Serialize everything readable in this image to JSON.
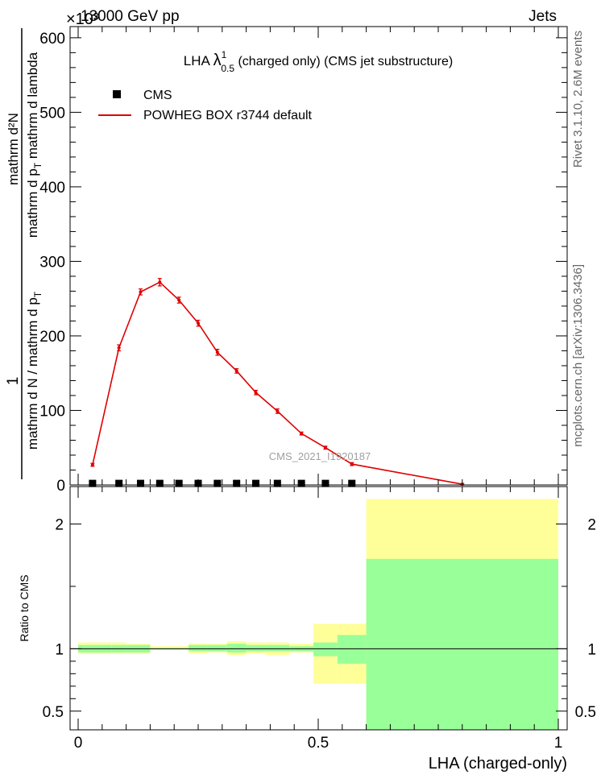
{
  "header": {
    "left": "13000 GeV pp",
    "right": "Jets",
    "exponent": "×10³"
  },
  "side_text": {
    "rivet": "Rivet 3.1.10,  2.6M events",
    "mcplots": "mcplots.cern.ch [arXiv:1306.3436]"
  },
  "watermark": "CMS_2021_I1920187",
  "main_plot": {
    "title_prefix": "LHA ",
    "title_symbol": "λ",
    "title_sup": "1",
    "title_sub": "0.5",
    "title_suffix": " (charged only) (CMS jet substructure)",
    "ylabel_numerator": "1",
    "ylabel_denominator": "mathrm d N / mathrm d p",
    "ylabel_denominator_sub": "T",
    "ylabel_numerator_full": "mathrm d²N",
    "ylabel_numerator_tail": "mathrm d p",
    "ylabel_numerator_tail_sub": "T",
    "ylabel_numerator_end": " mathrm d lambda",
    "legend": [
      {
        "label": "CMS",
        "marker": "square",
        "color": "#000000"
      },
      {
        "label": "POWHEG BOX r3744 default",
        "marker": "line",
        "color": "#e00000"
      }
    ]
  },
  "ratio_plot": {
    "ylabel": "Ratio to CMS",
    "xlabel": "LHA (charged-only)"
  },
  "colors": {
    "mc_line": "#e00000",
    "data_marker": "#000000",
    "band_outer": "#ffff99",
    "band_inner": "#99ff99"
  },
  "chart_data": [
    {
      "type": "line",
      "panel": "main",
      "xlim": [
        0,
        1
      ],
      "ylim": [
        0,
        615
      ],
      "y_multiplier": 1000,
      "yticks": [
        0,
        100,
        200,
        300,
        400,
        500,
        600
      ],
      "ytick_labels": [
        "0",
        "100",
        "200",
        "300",
        "400",
        "500",
        "600"
      ],
      "bins": [
        0.0,
        0.07,
        0.1,
        0.15,
        0.19,
        0.23,
        0.27,
        0.31,
        0.35,
        0.39,
        0.44,
        0.49,
        0.54,
        0.6,
        1.0
      ],
      "series": [
        {
          "name": "CMS",
          "kind": "markers",
          "x": [
            0.03,
            0.085,
            0.13,
            0.17,
            0.21,
            0.25,
            0.29,
            0.33,
            0.37,
            0.415,
            0.465,
            0.515,
            0.57
          ],
          "y": [
            1.5,
            1.5,
            1.5,
            1.5,
            1.5,
            1.5,
            1.5,
            1.5,
            1.5,
            1.5,
            1.5,
            1.5,
            1.5
          ]
        },
        {
          "name": "POWHEG BOX r3744 default",
          "kind": "line",
          "x": [
            0.03,
            0.085,
            0.13,
            0.17,
            0.21,
            0.25,
            0.29,
            0.33,
            0.37,
            0.415,
            0.465,
            0.515,
            0.57,
            0.8
          ],
          "y": [
            27,
            184,
            259,
            272,
            248,
            217,
            178,
            153,
            124,
            99,
            69,
            50,
            28,
            1
          ],
          "yerr": [
            2,
            4,
            4,
            5,
            4,
            4,
            4,
            3,
            3,
            3,
            2,
            2,
            2,
            1
          ]
        }
      ]
    },
    {
      "type": "area",
      "panel": "ratio",
      "xlim": [
        0,
        1
      ],
      "ylim": [
        0.35,
        2.3
      ],
      "yticks": [
        0.5,
        1,
        2
      ],
      "ytick_labels": [
        "0.5",
        "1",
        "2"
      ],
      "xticks": [
        0,
        0.5,
        1
      ],
      "xtick_labels": [
        "0",
        "0.5",
        "1"
      ],
      "reference_line": 1.0,
      "bins": [
        0.0,
        0.07,
        0.1,
        0.15,
        0.19,
        0.23,
        0.27,
        0.31,
        0.35,
        0.39,
        0.44,
        0.49,
        0.54,
        0.6,
        1.0
      ],
      "band_outer": {
        "low": [
          0.96,
          0.96,
          0.96,
          0.99,
          0.99,
          0.96,
          0.97,
          0.95,
          0.96,
          0.95,
          0.97,
          0.72,
          0.72,
          0.35
        ],
        "high": [
          1.05,
          1.05,
          1.04,
          1.02,
          1.02,
          1.04,
          1.04,
          1.06,
          1.05,
          1.05,
          1.04,
          1.2,
          1.2,
          2.2
        ]
      },
      "band_inner": {
        "low": [
          0.97,
          0.97,
          0.97,
          0.995,
          0.995,
          0.98,
          0.98,
          0.97,
          0.98,
          0.98,
          0.98,
          0.94,
          0.88,
          0.35
        ],
        "high": [
          1.03,
          1.03,
          1.03,
          1.005,
          1.005,
          1.03,
          1.03,
          1.04,
          1.03,
          1.03,
          1.02,
          1.05,
          1.11,
          1.72
        ]
      }
    }
  ]
}
